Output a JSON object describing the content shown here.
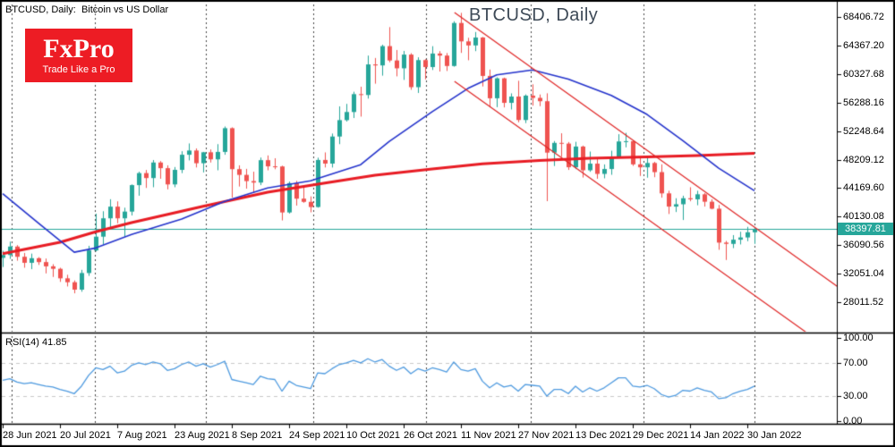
{
  "ui": {
    "symbol_info": "BTCUSD, Daily:  Bitcoin vs US Dollar",
    "watermark": "BTCUSD, Daily",
    "logo": {
      "name": "FxPro",
      "tagline": "Trade Like a Pro"
    },
    "rsi_title": "RSI(14) 41.85"
  },
  "chart_data": {
    "type": "candlestick",
    "symbol": "BTCUSD",
    "timeframe": "Daily",
    "title": "BTCUSD, Daily",
    "current_price": 38397.81,
    "current_price_label": "38397.81",
    "colors": {
      "bull": "#26a69a",
      "bear": "#ef5350",
      "ma_fast": "#2433cc",
      "ma_slow": "#e81c24",
      "trendline": "#e02525",
      "rsi_line": "#4f9be0",
      "current_price_line": "#26a69a",
      "badge_bg": "#26a69a",
      "grid": "#444444",
      "rsi_grid": "#c9c9c9"
    },
    "y_axis": {
      "labels": [
        "68406.72",
        "64367.20",
        "60327.68",
        "56288.16",
        "52248.64",
        "48209.12",
        "44169.60",
        "40130.08",
        "36090.56",
        "32051.04",
        "28011.52"
      ]
    },
    "x_axis": {
      "labels": [
        "28 Jun 2021",
        "20 Jul 2021",
        "7 Aug 2021",
        "23 Aug 2021",
        "8 Sep 2021",
        "24 Sep 2021",
        "10 Oct 2021",
        "26 Oct 2021",
        "11 Nov 2021",
        "27 Nov 2021",
        "13 Dec 2021",
        "29 Dec 2021",
        "14 Jan 2022",
        "30 Jan 2022"
      ]
    },
    "candles": [
      [
        34300,
        35300,
        33000,
        34700
      ],
      [
        34700,
        36600,
        34150,
        35900
      ],
      [
        35900,
        36100,
        33900,
        34450
      ],
      [
        34450,
        35000,
        32900,
        33600
      ],
      [
        33600,
        34900,
        32700,
        34250
      ],
      [
        34250,
        34400,
        33300,
        33700
      ],
      [
        33700,
        34200,
        32100,
        33100
      ],
      [
        33100,
        33400,
        31600,
        32750
      ],
      [
        32750,
        32900,
        30900,
        31400
      ],
      [
        31400,
        31900,
        30250,
        30850
      ],
      [
        30850,
        31100,
        29280,
        29800
      ],
      [
        29800,
        32600,
        29500,
        32150
      ],
      [
        32150,
        36000,
        31750,
        35350
      ],
      [
        35350,
        40550,
        35200,
        37300
      ],
      [
        37300,
        40900,
        36200,
        39900
      ],
      [
        39900,
        42600,
        38300,
        41550
      ],
      [
        41550,
        42300,
        39200,
        39900
      ],
      [
        39900,
        41400,
        37300,
        40850
      ],
      [
        40850,
        44700,
        40300,
        44600
      ],
      [
        44600,
        46500,
        43100,
        46300
      ],
      [
        46300,
        46740,
        44200,
        45600
      ],
      [
        45600,
        48150,
        44300,
        47800
      ],
      [
        47800,
        48000,
        45500,
        47000
      ],
      [
        47000,
        47400,
        44000,
        44700
      ],
      [
        44700,
        47160,
        44300,
        46760
      ],
      [
        46760,
        49400,
        46300,
        48900
      ],
      [
        48900,
        50500,
        48100,
        49500
      ],
      [
        49500,
        49800,
        47100,
        47700
      ],
      [
        47700,
        49300,
        46400,
        49250
      ],
      [
        49250,
        49650,
        47800,
        48250
      ],
      [
        48250,
        50400,
        46700,
        49300
      ],
      [
        49300,
        52900,
        48900,
        52660
      ],
      [
        52660,
        52780,
        42830,
        46860
      ],
      [
        46860,
        47400,
        44400,
        46050
      ],
      [
        46050,
        46900,
        44100,
        45170
      ],
      [
        45170,
        46500,
        43470,
        44960
      ],
      [
        44960,
        48500,
        44600,
        48130
      ],
      [
        48130,
        48800,
        46700,
        47260
      ],
      [
        47260,
        48400,
        46850,
        47240
      ],
      [
        47240,
        47350,
        39600,
        40730
      ],
      [
        40730,
        45100,
        40570,
        44880
      ],
      [
        44880,
        45200,
        41700,
        42680
      ],
      [
        42680,
        44400,
        42100,
        42230
      ],
      [
        42230,
        43000,
        40750,
        41500
      ],
      [
        41500,
        48480,
        41410,
        48160
      ],
      [
        48160,
        49230,
        47100,
        47650
      ],
      [
        47650,
        51900,
        47090,
        51480
      ],
      [
        51480,
        55750,
        50400,
        53800
      ],
      [
        53800,
        56100,
        53600,
        54950
      ],
      [
        54950,
        57820,
        54100,
        57480
      ],
      [
        57480,
        58530,
        54300,
        57360
      ],
      [
        57360,
        62940,
        56850,
        61690
      ],
      [
        61690,
        62600,
        58960,
        61550
      ],
      [
        61550,
        64480,
        60100,
        64280
      ],
      [
        64280,
        66970,
        62000,
        62250
      ],
      [
        62250,
        63730,
        60000,
        61140
      ],
      [
        61140,
        63600,
        59500,
        63080
      ],
      [
        63080,
        63280,
        58100,
        58470
      ],
      [
        58470,
        62700,
        57650,
        62300
      ],
      [
        62300,
        62420,
        59570,
        61320
      ],
      [
        61320,
        64270,
        60900,
        63230
      ],
      [
        63230,
        63570,
        60680,
        62940
      ],
      [
        62940,
        63300,
        60760,
        61470
      ],
      [
        61470,
        67800,
        61370,
        67560
      ],
      [
        67560,
        68990,
        63320,
        64950
      ],
      [
        64950,
        65460,
        62280,
        64380
      ],
      [
        64380,
        66280,
        63570,
        65500
      ],
      [
        65500,
        65580,
        58570,
        60060
      ],
      [
        60060,
        60960,
        55600,
        56900
      ],
      [
        56900,
        59860,
        55640,
        59720
      ],
      [
        59720,
        59820,
        55600,
        56250
      ],
      [
        56250,
        57590,
        55310,
        57140
      ],
      [
        57140,
        59370,
        53500,
        53820
      ],
      [
        53820,
        57440,
        53380,
        57270
      ],
      [
        57270,
        58870,
        55850,
        56950
      ],
      [
        56950,
        57430,
        55780,
        56480
      ],
      [
        56480,
        57600,
        42330,
        49200
      ],
      [
        49200,
        50840,
        47300,
        50580
      ],
      [
        50580,
        51940,
        48600,
        50480
      ],
      [
        50480,
        50700,
        46750,
        47130
      ],
      [
        47130,
        50730,
        46870,
        50060
      ],
      [
        50060,
        50190,
        45670,
        46700
      ],
      [
        46700,
        49350,
        46480,
        47640
      ],
      [
        47640,
        48270,
        45500,
        46190
      ],
      [
        46190,
        47530,
        45560,
        46880
      ],
      [
        46880,
        49470,
        46060,
        48620
      ],
      [
        48620,
        51810,
        48450,
        50780
      ],
      [
        50780,
        52000,
        49950,
        50820
      ],
      [
        50820,
        50900,
        47320,
        47540
      ],
      [
        47540,
        48480,
        45900,
        47120
      ],
      [
        47120,
        48560,
        45650,
        47730
      ],
      [
        47730,
        47900,
        45720,
        46440
      ],
      [
        46440,
        47540,
        42820,
        43430
      ],
      [
        43430,
        43800,
        40510,
        41560
      ],
      [
        41560,
        42740,
        40790,
        41890
      ],
      [
        41890,
        43100,
        39660,
        42740
      ],
      [
        42740,
        44300,
        42310,
        42590
      ],
      [
        42590,
        43800,
        41750,
        43300
      ],
      [
        43300,
        43470,
        41560,
        42250
      ],
      [
        42250,
        42590,
        41170,
        41260
      ],
      [
        41260,
        41790,
        35440,
        36460
      ],
      [
        36460,
        36700,
        34000,
        36280
      ],
      [
        36280,
        37520,
        35680,
        36870
      ],
      [
        36870,
        38000,
        36200,
        37190
      ],
      [
        37190,
        38690,
        36660,
        37920
      ],
      [
        37920,
        38660,
        36280,
        38398
      ]
    ],
    "ma_fast": {
      "i": [
        0,
        5,
        10,
        13,
        18,
        25,
        31,
        37,
        43,
        50,
        54,
        60,
        65,
        69,
        74,
        79,
        85,
        90,
        95,
        100,
        105
      ],
      "p": [
        43400,
        39200,
        35100,
        35700,
        37600,
        39800,
        42300,
        44200,
        45200,
        47500,
        50800,
        55000,
        58300,
        60200,
        60900,
        59600,
        57300,
        54600,
        50900,
        47000,
        43800
      ]
    },
    "ma_slow": {
      "i": [
        0,
        8,
        13,
        18,
        28,
        37,
        45,
        52,
        60,
        67,
        75,
        82,
        90,
        97,
        105
      ],
      "p": [
        34900,
        36500,
        38000,
        39300,
        41600,
        43600,
        44900,
        46000,
        46900,
        47600,
        48100,
        48400,
        48600,
        48800,
        49100
      ]
    },
    "trendlines": [
      {
        "i1": 63.1,
        "p1": 69040,
        "i2": 117.0,
        "p2": 29950
      },
      {
        "i1": 63.1,
        "p1": 59300,
        "i2": 112.3,
        "p2": 23700
      }
    ],
    "rsi": {
      "label": "RSI(14) 41.85",
      "period": 14,
      "value": 41.85,
      "levels": [
        "100.00",
        "70.00",
        "30.00",
        "0.00"
      ],
      "series": [
        49,
        51,
        47,
        45,
        46,
        44,
        42,
        41,
        38,
        36,
        33,
        42,
        55,
        64,
        62,
        66,
        58,
        60,
        67,
        70,
        68,
        71,
        69,
        61,
        63,
        68,
        71,
        66,
        69,
        65,
        68,
        72,
        50,
        48,
        46,
        44,
        54,
        51,
        50,
        36,
        48,
        43,
        41,
        39,
        58,
        57,
        63,
        68,
        70,
        73,
        70,
        75,
        71,
        74,
        66,
        61,
        65,
        57,
        63,
        60,
        64,
        62,
        59,
        71,
        62,
        60,
        63,
        48,
        40,
        46,
        41,
        43,
        36,
        44,
        43,
        42,
        30,
        38,
        38,
        33,
        42,
        35,
        40,
        36,
        40,
        46,
        52,
        52,
        42,
        41,
        43,
        39,
        32,
        29,
        31,
        37,
        36,
        40,
        37,
        35,
        27,
        28,
        33,
        36,
        38,
        42
      ]
    }
  }
}
